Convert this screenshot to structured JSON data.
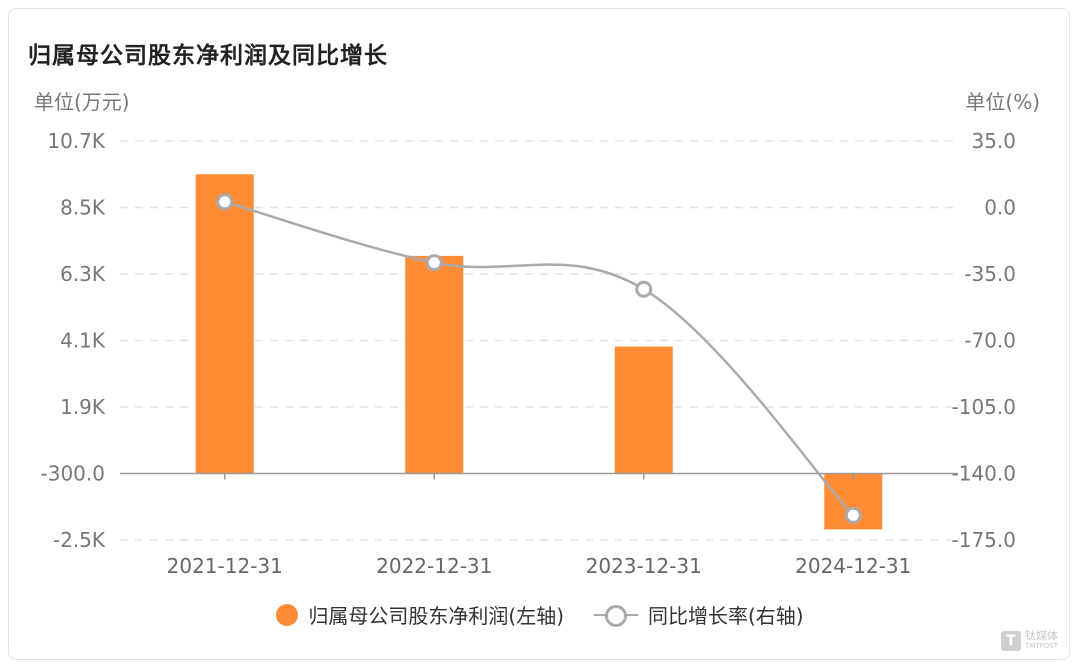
{
  "chart_data": {
    "type": "bar+line",
    "title": "归属母公司股东净利润及同比增长",
    "left_axis_unit": "单位(万元)",
    "right_axis_unit": "单位(%)",
    "categories": [
      "2021-12-31",
      "2022-12-31",
      "2023-12-31",
      "2024-12-31"
    ],
    "left_ticks": [
      "10.7K",
      "8.5K",
      "6.3K",
      "4.1K",
      "1.9K",
      "-300.0",
      "-2.5K"
    ],
    "right_ticks": [
      "35.0",
      "0.0",
      "-35.0",
      "-70.0",
      "-105.0",
      "-140.0",
      "-175.0"
    ],
    "left_range": [
      -2500,
      10700
    ],
    "right_range": [
      -175,
      35
    ],
    "grid": true,
    "legend_position": "bottom",
    "series": [
      {
        "name": "归属母公司股东净利润(左轴)",
        "type": "bar",
        "axis": "left",
        "color": "#ff8c35",
        "values": [
          9600,
          6900,
          3900,
          -2150
        ]
      },
      {
        "name": "同比增长率(右轴)",
        "type": "line",
        "axis": "right",
        "color": "#aaaaaa",
        "values": [
          3.0,
          -29.0,
          -43.0,
          -162.0
        ]
      }
    ]
  },
  "legend": {
    "bar_label": "归属母公司股东净利润(左轴)",
    "line_label": "同比增长率(右轴)"
  },
  "watermark": {
    "glyph": "T",
    "name": "钛媒体",
    "sub": "TMTPOST"
  }
}
